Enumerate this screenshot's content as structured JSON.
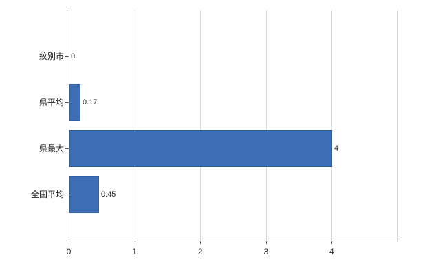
{
  "chart_data": {
    "type": "bar",
    "orientation": "horizontal",
    "title": "",
    "categories": [
      "紋別市",
      "県平均",
      "県最大",
      "全国平均"
    ],
    "values": [
      0,
      0.17,
      4,
      0.45
    ],
    "data_labels": [
      "0",
      "0.17",
      "4",
      "0.45"
    ],
    "x_ticks": [
      0,
      1,
      2,
      3,
      4
    ],
    "x_tick_labels": [
      "0",
      "1",
      "2",
      "3",
      "4"
    ],
    "xlim": [
      0,
      5
    ],
    "grid": true,
    "legend": false,
    "bar_color": "#3d6eb5",
    "bar_border_color": "#2f5d9e",
    "grid_color": "#d9d9d9",
    "axis_color": "#595959",
    "text_color": "#262626",
    "background": "#ffffff"
  }
}
